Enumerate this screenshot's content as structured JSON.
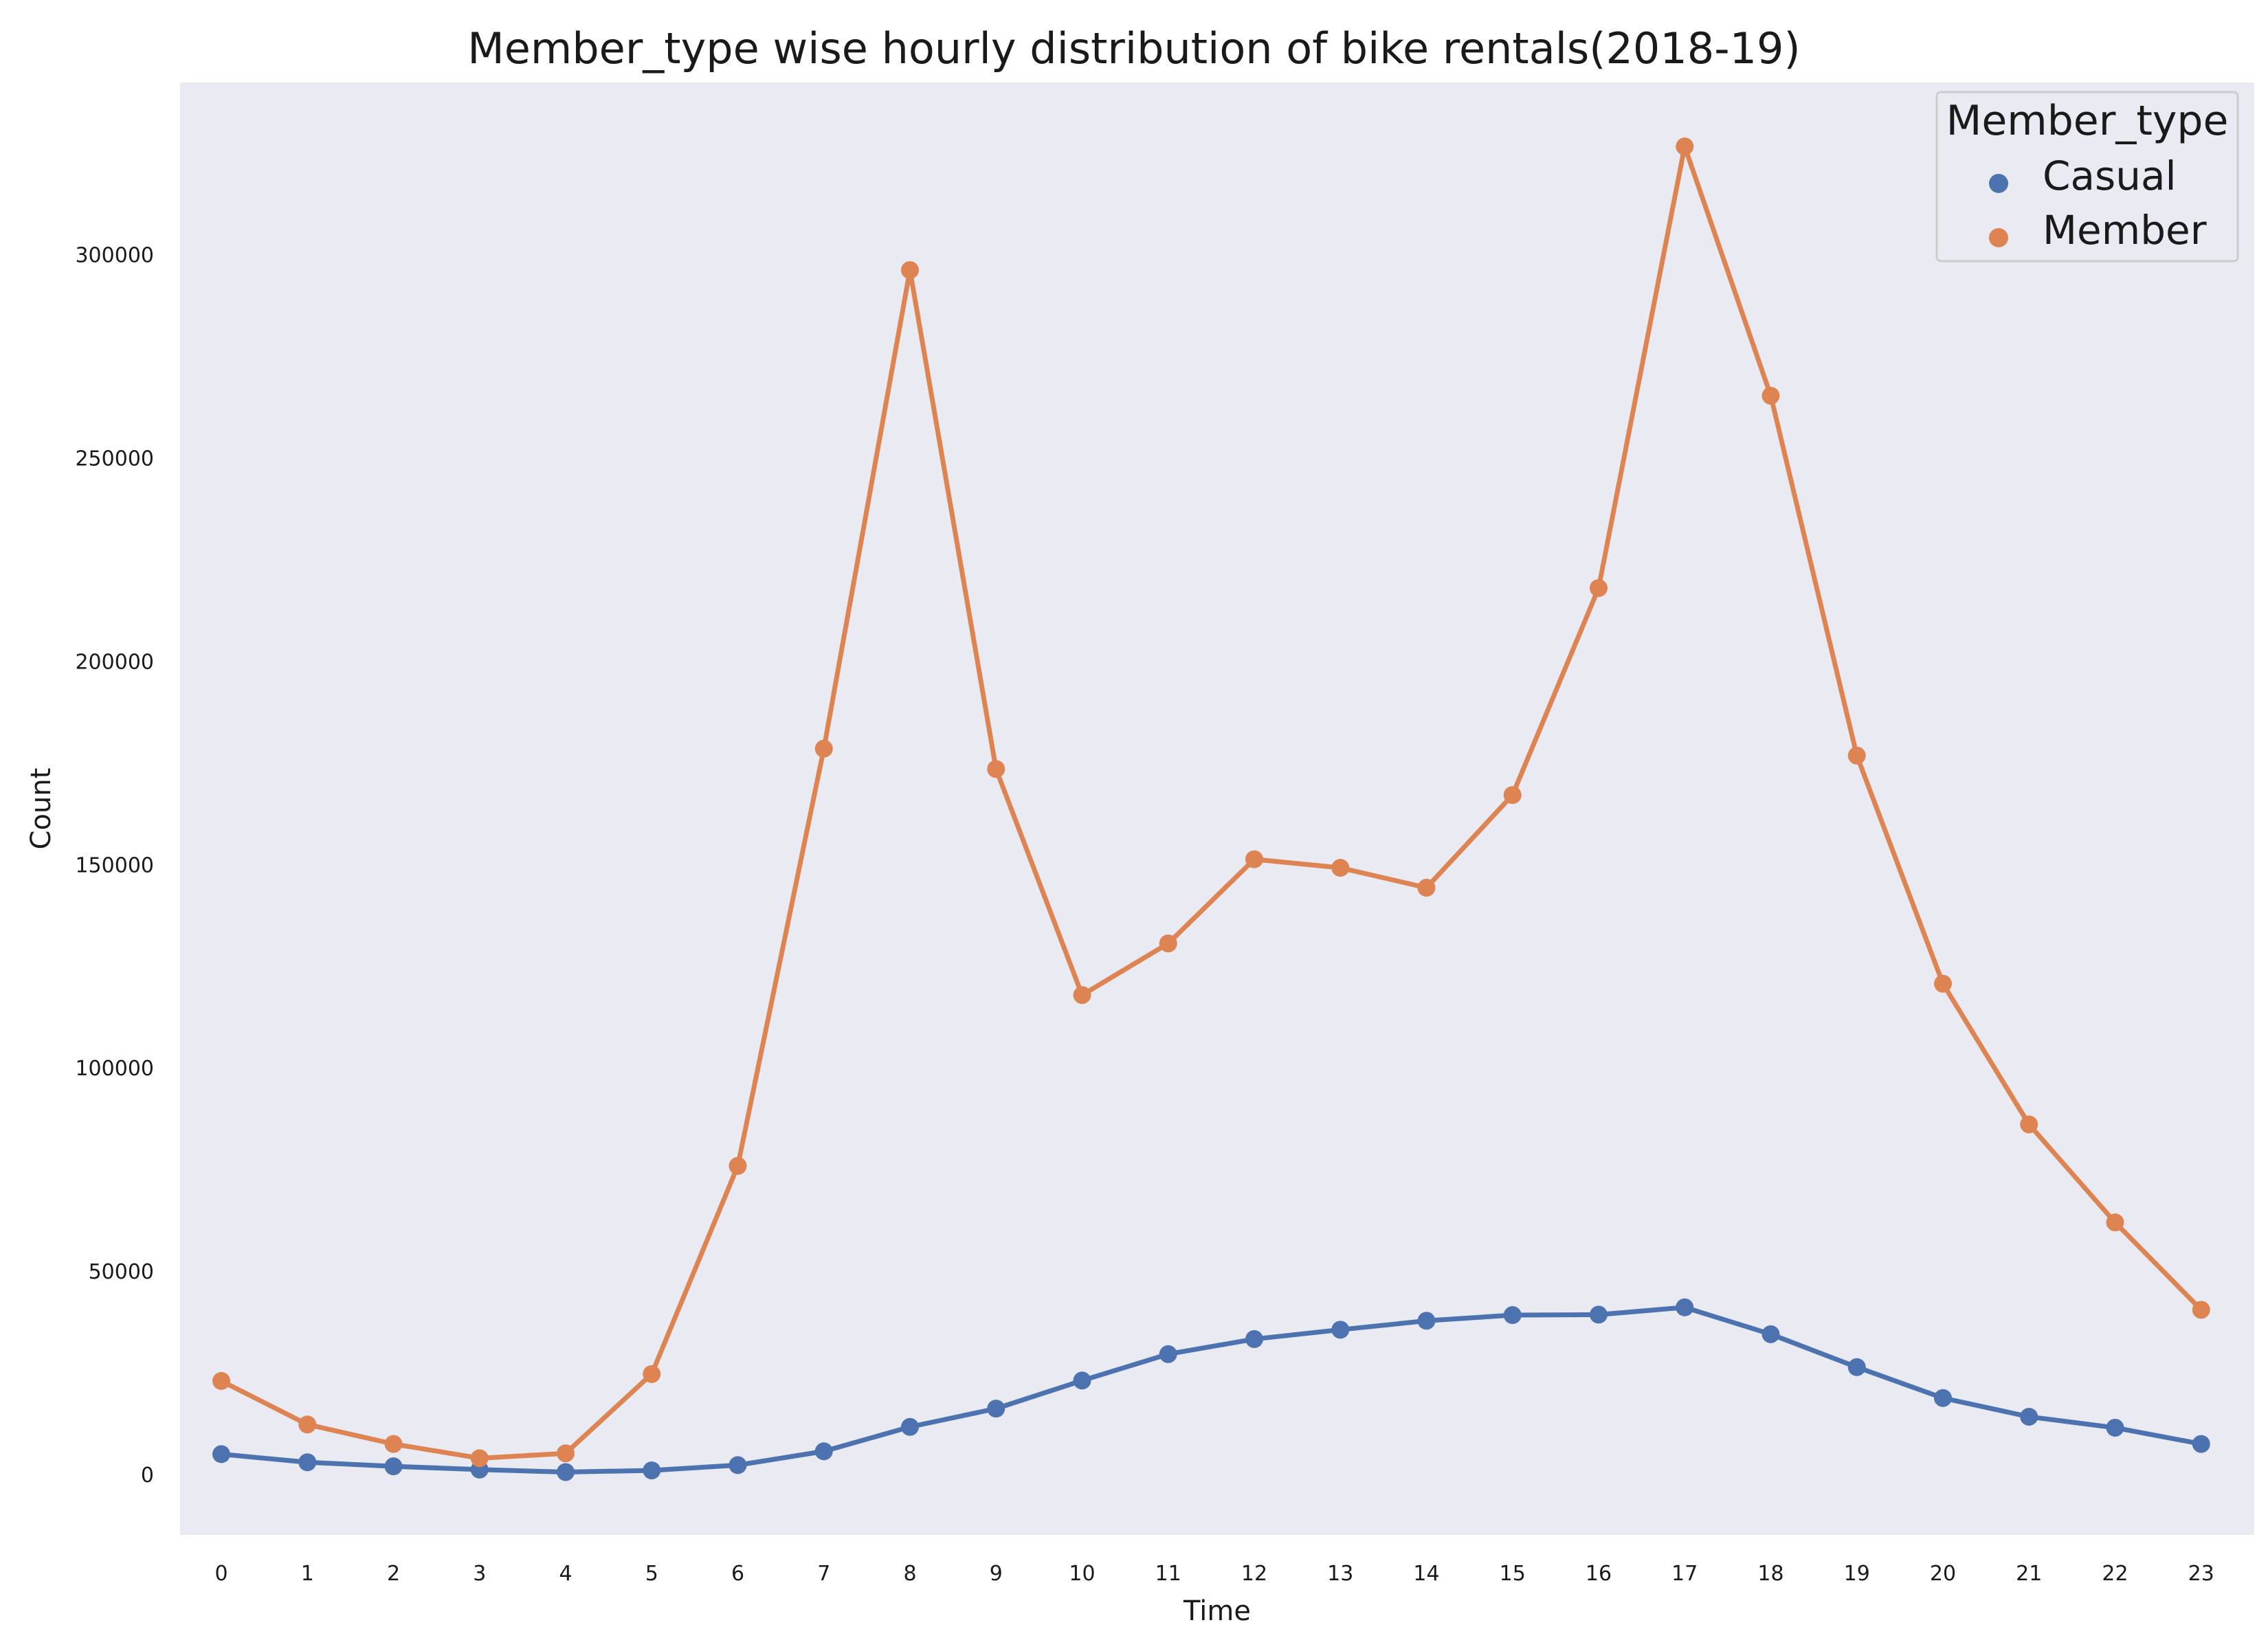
{
  "chart_data": {
    "type": "line",
    "title": "Member_type wise hourly distribution of bike rentals(2018-19)",
    "xlabel": "Time",
    "ylabel": "Count",
    "categories": [
      "0",
      "1",
      "2",
      "3",
      "4",
      "5",
      "6",
      "7",
      "8",
      "9",
      "10",
      "11",
      "12",
      "13",
      "14",
      "15",
      "16",
      "17",
      "18",
      "19",
      "20",
      "21",
      "22",
      "23"
    ],
    "yticks": [
      0,
      50000,
      100000,
      150000,
      200000,
      250000,
      300000
    ],
    "ylim": [
      -15000,
      342000
    ],
    "grid": false,
    "legend": {
      "title": "Member_type",
      "placement": "top-right"
    },
    "colors": {
      "plot_background": "#eaeaf2",
      "casual": "#4c72b0",
      "member": "#dd8452"
    },
    "series": [
      {
        "name": "Casual",
        "color": "#4c72b0",
        "values": [
          5000,
          3000,
          2000,
          1200,
          600,
          1000,
          2300,
          5700,
          11700,
          16200,
          23100,
          29600,
          33300,
          35600,
          37800,
          39200,
          39300,
          41100,
          34500,
          26400,
          18800,
          14200,
          11500,
          7500
        ]
      },
      {
        "name": "Member",
        "color": "#dd8452",
        "values": [
          23000,
          12300,
          7500,
          4000,
          5200,
          24700,
          75900,
          178500,
          296200,
          173500,
          117900,
          130600,
          151300,
          149200,
          144300,
          167100,
          218000,
          326600,
          265300,
          176800,
          120700,
          86100,
          62000,
          40500
        ]
      }
    ]
  }
}
